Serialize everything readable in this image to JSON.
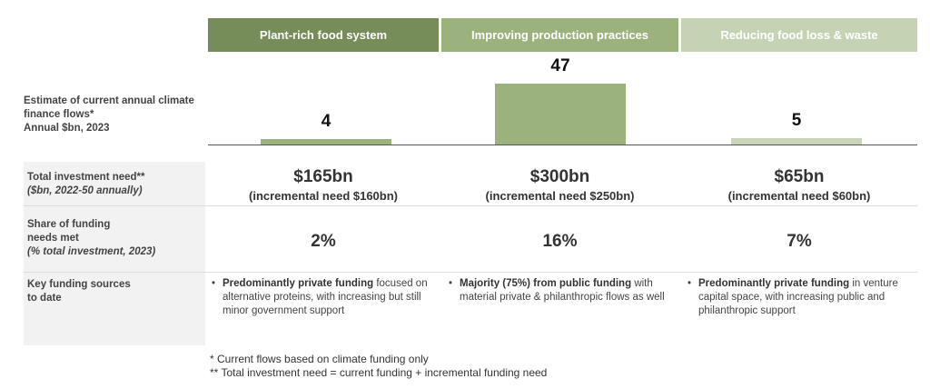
{
  "chart_data": {
    "type": "bar",
    "categories": [
      "Plant-rich food system",
      "Improving production practices",
      "Reducing food loss & waste"
    ],
    "values": [
      4,
      47,
      5
    ],
    "title": "Estimate of current annual climate finance flows*",
    "ylabel": "Annual $bn, 2023",
    "ylim": [
      0,
      47
    ],
    "colors": [
      "#9bb27c",
      "#9bb27c",
      "#c8d5b9"
    ]
  },
  "headers": [
    {
      "label": "Plant-rich food system",
      "color": "#768d59"
    },
    {
      "label": "Improving production practices",
      "color": "#9bb27c"
    },
    {
      "label": "Reducing food loss & waste",
      "color": "#c5d3b4"
    }
  ],
  "rows": {
    "flows": {
      "line1": "Estimate of current annual climate",
      "line2": "finance flows*",
      "line3": "Annual $bn, 2023"
    },
    "investment": {
      "line1": "Total investment need**",
      "line2": "($bn, 2022-50 annually)",
      "values": [
        {
          "main": "$165bn",
          "sub": "(incremental need $160bn)"
        },
        {
          "main": "$300bn",
          "sub": "(incremental need $250bn)"
        },
        {
          "main": "$65bn",
          "sub": "(incremental need $60bn)"
        }
      ]
    },
    "share": {
      "line1": "Share of funding",
      "line2": "needs met",
      "line3": "(% total investment, 2023)",
      "values": [
        "2%",
        "16%",
        "7%"
      ]
    },
    "sources": {
      "line1": "Key funding sources",
      "line2": "to date",
      "values": [
        {
          "bold": "Predominantly private funding",
          "rest": " focused on alternative proteins, with increasing but still minor government support"
        },
        {
          "bold": "Majority (75%) from public funding",
          "rest": " with material private & philanthropic flows as well"
        },
        {
          "bold": "Predominantly private funding",
          "rest": " in venture capital space, with increasing public and philanthropic support"
        }
      ]
    }
  },
  "footnotes": [
    "* Current flows based on climate funding only",
    "** Total investment need = current funding + incremental funding need"
  ]
}
